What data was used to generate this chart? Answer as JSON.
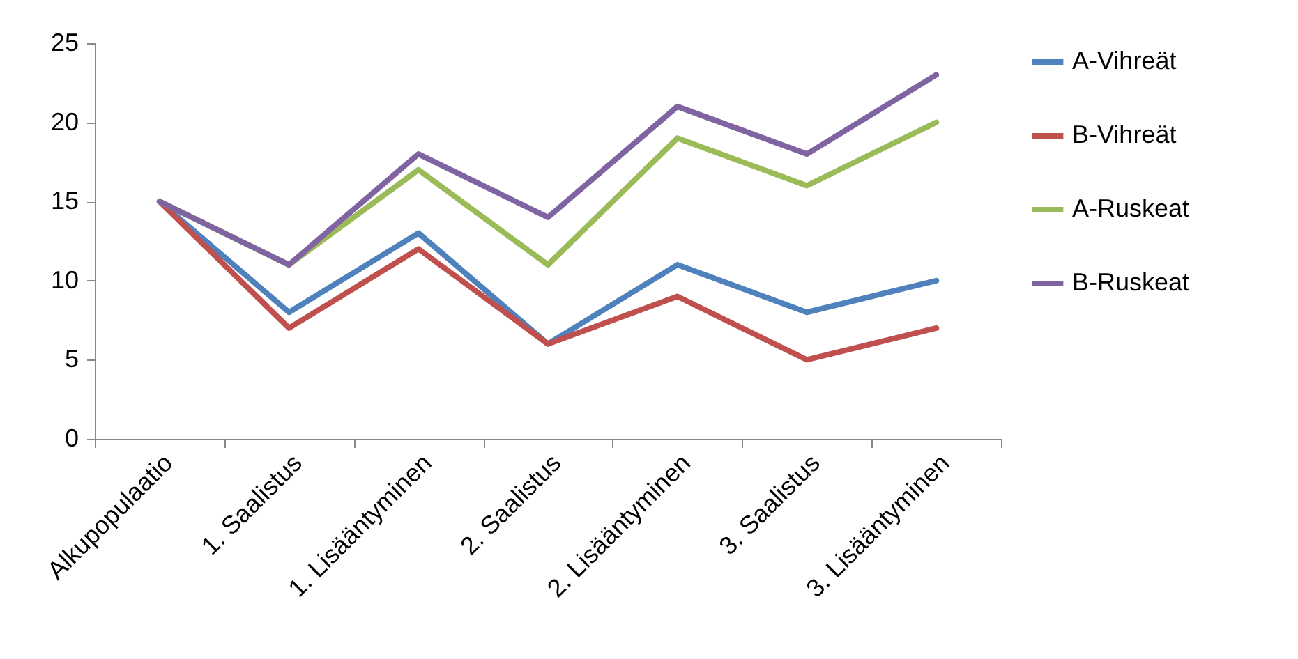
{
  "chart_data": {
    "type": "line",
    "categories": [
      "Alkupopulaatio",
      "1. Saalistus",
      "1. Lisääntyminen",
      "2. Saalistus",
      "2. Lisääntyminen",
      "3. Saalistus",
      "3. Lisääntyminen"
    ],
    "series": [
      {
        "name": "A-Vihreät",
        "color": "#4f81bd",
        "values": [
          15,
          8,
          13,
          6,
          11,
          8,
          10
        ]
      },
      {
        "name": "B-Vihreät",
        "color": "#c0504d",
        "values": [
          15,
          7,
          12,
          6,
          9,
          5,
          7
        ]
      },
      {
        "name": "A-Ruskeat",
        "color": "#9bbb59",
        "values": [
          15,
          11,
          17,
          11,
          19,
          16,
          20
        ]
      },
      {
        "name": "B-Ruskeat",
        "color": "#8064a2",
        "values": [
          15,
          11,
          18,
          14,
          21,
          18,
          23
        ]
      }
    ],
    "ylim": [
      0,
      25
    ],
    "yticks": [
      0,
      5,
      10,
      15,
      20,
      25
    ],
    "grid": false,
    "legend": "right",
    "marker": "none",
    "line_style": "solid"
  }
}
